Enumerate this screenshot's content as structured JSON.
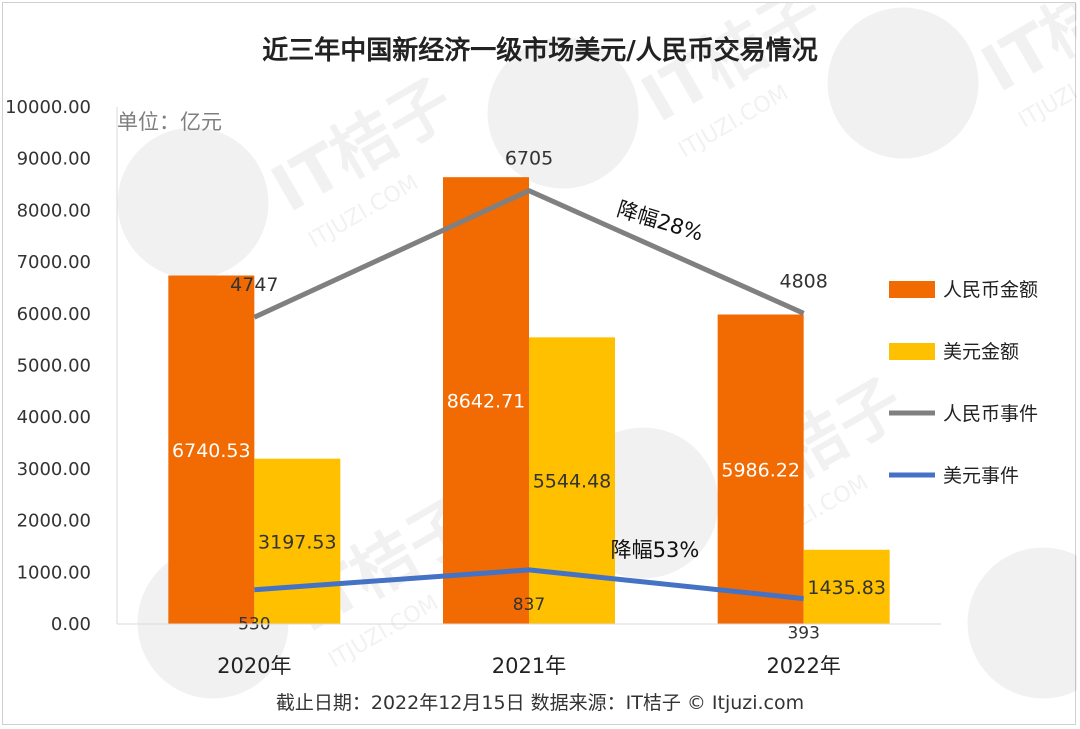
{
  "chart_data": {
    "type": "bar",
    "title": "近三年中国新经济一级市场美元/人民币交易情况",
    "unit_label": "单位：亿元",
    "categories": [
      "2020年",
      "2021年",
      "2022年"
    ],
    "ylim": [
      0,
      10000
    ],
    "y_ticks": [
      "0.00",
      "1000.00",
      "2000.00",
      "3000.00",
      "4000.00",
      "5000.00",
      "6000.00",
      "7000.00",
      "8000.00",
      "9000.00",
      "10000.00"
    ],
    "series": [
      {
        "name": "人民币金额",
        "kind": "bar",
        "color": "#f26a02",
        "values": [
          6740.53,
          8642.71,
          5986.22
        ],
        "labels": [
          "6740.53",
          "8642.71",
          "5986.22"
        ]
      },
      {
        "name": "美元金额",
        "kind": "bar",
        "color": "#ffc000",
        "values": [
          3197.53,
          5544.48,
          1435.83
        ],
        "labels": [
          "3197.53",
          "5544.48",
          "1435.83"
        ]
      },
      {
        "name": "人民币事件",
        "kind": "line",
        "color": "#808080",
        "values": [
          4747,
          6705,
          4808
        ],
        "labels": [
          "4747",
          "6705",
          "4808"
        ]
      },
      {
        "name": "美元事件",
        "kind": "line",
        "color": "#4472c4",
        "values": [
          530,
          837,
          393
        ],
        "labels": [
          "530",
          "837",
          "393"
        ]
      }
    ],
    "annotations": [
      "降幅28%",
      "降幅53%"
    ],
    "legend_position": "right",
    "grid": false
  },
  "footer": "截止日期：2022年12月15日   数据来源：IT桔子 © Itjuzi.com",
  "watermark": {
    "text": "IT桔子",
    "subtext": "ITJUZI.COM"
  }
}
